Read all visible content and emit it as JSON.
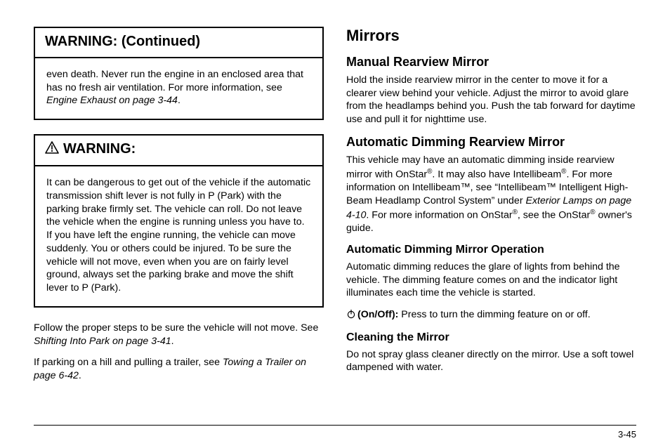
{
  "left": {
    "warn1": {
      "title": "WARNING:  (Continued)",
      "body_html": "even death. Never run the engine in an enclosed area that has no fresh air ventilation. For more information, see <span class='ital'>Engine Exhaust on page 3‑44</span>."
    },
    "warn2": {
      "title": "WARNING:",
      "body_html": "It can be dangerous to get out of the vehicle if the automatic transmission shift lever is not fully in P (Park) with the parking brake firmly set. The vehicle can roll. Do not leave the vehicle when the engine is running unless you have to. If you have left the engine running, the vehicle can move suddenly. You or others could be injured. To be sure the vehicle will not move, even when you are on fairly level ground, always set the parking brake and move the shift lever to P (Park)."
    },
    "p1_html": "Follow the proper steps to be sure the vehicle will not move. See <span class='ital'>Shifting Into Park  on page 3‑41</span>.",
    "p2_html": "If parking on a hill and pulling a trailer, see <span class='ital'>Towing a Trailer on page 6‑42</span>."
  },
  "right": {
    "h1": "Mirrors",
    "s1": {
      "title": "Manual Rearview Mirror",
      "body": "Hold the inside rearview mirror in the center to move it for a clearer view behind your vehicle. Adjust the mirror to avoid glare from the headlamps behind you. Push the tab forward for daytime use and pull it for nighttime use."
    },
    "s2": {
      "title": "Automatic Dimming Rearview Mirror",
      "body_html": "This vehicle may have an automatic dimming inside rearview mirror with OnStar<span class='sup'>®</span>. It may also have Intellibeam<span class='sup'>®</span>. For more information on Intellibeam™, see “Intellibeam™ Intelligent High-Beam Headlamp Control System” under <span class='ital'>Exterior Lamps on page 4‑10</span>. For more information on OnStar<span class='sup'>®</span>, see the OnStar<span class='sup'>®</span> owner's guide."
    },
    "s3": {
      "title": "Automatic Dimming Mirror Operation",
      "body": "Automatic dimming reduces the glare of lights from behind the vehicle. The dimming feature comes on and the indicator light illuminates each time the vehicle is started.",
      "onoff_html": "<b>(On/Off):</b> Press to turn the dimming feature on or off."
    },
    "s4": {
      "title": "Cleaning the Mirror",
      "body": "Do not spray glass cleaner directly on the mirror. Use a soft towel dampened with water."
    }
  },
  "page_number": "3-45"
}
